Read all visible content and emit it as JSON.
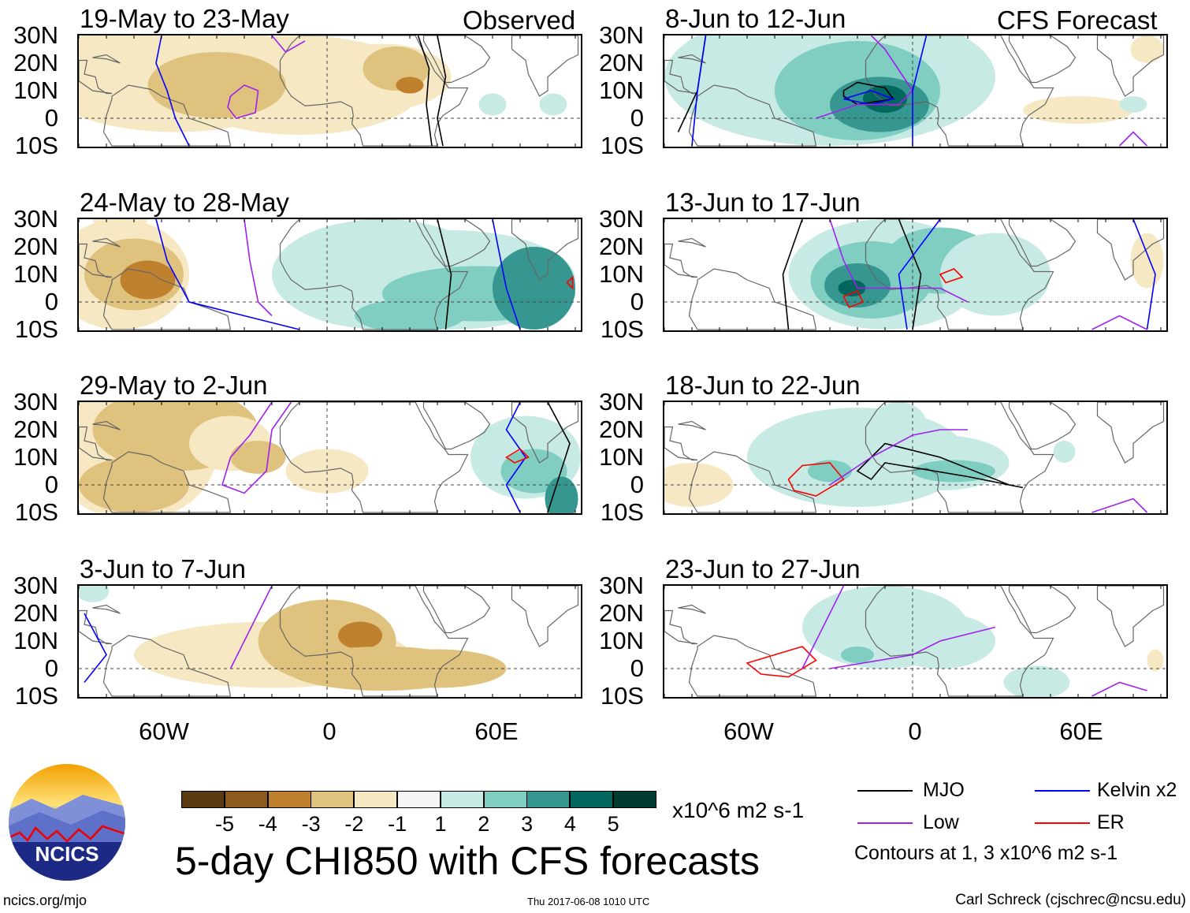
{
  "chart_data": {
    "type": "heatmap",
    "title": "5-day CHI850 with CFS forecasts",
    "variable": "CHI850 anomaly",
    "units": "x10^6 m2 s-1",
    "column_headers": [
      "Observed",
      "CFS Forecast"
    ],
    "panels": [
      {
        "period": "19-May to 23-May",
        "column": "Observed"
      },
      {
        "period": "24-May to 28-May",
        "column": "Observed"
      },
      {
        "period": "29-May to 2-Jun",
        "column": "Observed"
      },
      {
        "period": "3-Jun to 7-Jun",
        "column": "Observed"
      },
      {
        "period": "8-Jun to 12-Jun",
        "column": "CFS Forecast"
      },
      {
        "period": "13-Jun to 17-Jun",
        "column": "CFS Forecast"
      },
      {
        "period": "18-Jun to 22-Jun",
        "column": "CFS Forecast"
      },
      {
        "period": "23-Jun to 27-Jun",
        "column": "CFS Forecast"
      }
    ],
    "lat_ticks": [
      "30N",
      "20N",
      "10N",
      "0",
      "10S"
    ],
    "lon_ticks": [
      "60W",
      "0",
      "60E"
    ],
    "lat_range": [
      -10,
      30
    ],
    "lon_range": [
      -90,
      90
    ],
    "colorbar": {
      "labels": [
        "-5",
        "-4",
        "-3",
        "-2",
        "-1",
        "1",
        "2",
        "3",
        "4",
        "5"
      ],
      "colors": [
        "#5a3a10",
        "#8c5a1e",
        "#bf812d",
        "#dfc27d",
        "#f6e8c3",
        "#f5f5f5",
        "#c7eae5",
        "#80cdc1",
        "#35978f",
        "#01665e",
        "#003c30"
      ]
    },
    "legend": [
      {
        "label": "MJO",
        "color": "#000000"
      },
      {
        "label": "Kelvin x2",
        "color": "#0000ff"
      },
      {
        "label": "Low",
        "color": "#a020f0"
      },
      {
        "label": "ER",
        "color": "#ff0000"
      }
    ],
    "contour_note": "Contours at 1, 3 x10^6 m2 s-1"
  },
  "footer": {
    "url": "ncics.org/mjo",
    "timestamp": "Thu 2017-06-08 1010 UTC",
    "author": "Carl Schreck (cjschrec@ncsu.edu)",
    "logo_text": "NCICS"
  }
}
